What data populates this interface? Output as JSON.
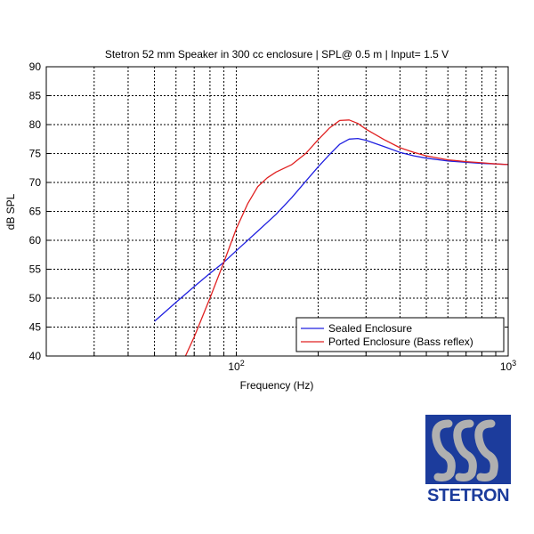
{
  "chart_data": {
    "type": "line",
    "title": "Stetron 52 mm Speaker in 300 cc enclosure  |  SPL@ 0.5 m  |  Input= 1.5 V",
    "xlabel": "Frequency (Hz)",
    "ylabel": "dB SPL",
    "xscale": "log",
    "xlim": [
      20,
      1000
    ],
    "ylim": [
      40,
      90
    ],
    "yticks": [
      40,
      45,
      50,
      55,
      60,
      65,
      70,
      75,
      80,
      85,
      90
    ],
    "xtick_base": "10",
    "xtick_exponents": [
      "2",
      "3"
    ],
    "grid": true,
    "legend_position": "lower-right",
    "series": [
      {
        "name": "Sealed Enclosure",
        "color": "#2020e0",
        "x": [
          50,
          60,
          70,
          80,
          90,
          100,
          120,
          140,
          160,
          180,
          200,
          220,
          240,
          260,
          280,
          300,
          350,
          400,
          450,
          500,
          600,
          700,
          800,
          900,
          1000
        ],
        "y": [
          46.0,
          49.3,
          52.0,
          54.3,
          56.2,
          58.2,
          61.6,
          64.5,
          67.4,
          70.2,
          72.7,
          74.8,
          76.6,
          77.5,
          77.6,
          77.3,
          76.2,
          75.2,
          74.6,
          74.2,
          73.7,
          73.5,
          73.3,
          73.2,
          73.1
        ]
      },
      {
        "name": "Ported Enclosure (Bass reflex)",
        "color": "#e02020",
        "x": [
          65,
          70,
          80,
          90,
          100,
          110,
          120,
          130,
          140,
          160,
          180,
          200,
          220,
          240,
          260,
          280,
          300,
          350,
          400,
          450,
          500,
          600,
          700,
          800,
          900,
          1000
        ],
        "y": [
          40.0,
          43.3,
          50.0,
          56.2,
          62.0,
          66.3,
          69.3,
          70.8,
          71.8,
          73.1,
          75.0,
          77.4,
          79.4,
          80.7,
          80.8,
          80.2,
          79.2,
          77.4,
          76.0,
          75.2,
          74.6,
          73.9,
          73.6,
          73.4,
          73.2,
          73.1
        ]
      }
    ]
  },
  "logo": {
    "text": "STETRON",
    "color": "#1c3c9c"
  }
}
